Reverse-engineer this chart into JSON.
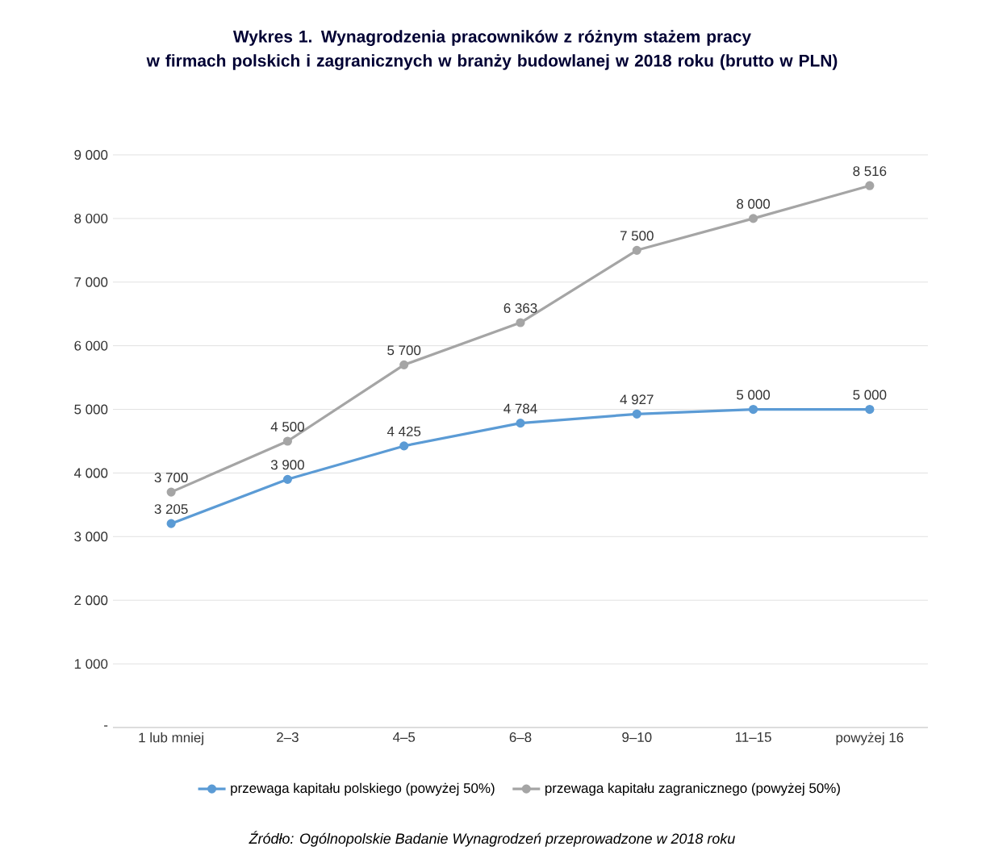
{
  "chart_data": {
    "type": "line",
    "title": "Wykres 1. Wynagrodzenia pracowników z różnym stażem pracy\nw firmach polskich i zagranicznych w branży budowlanej w 2018 roku (brutto w PLN)",
    "categories": [
      "1 lub mniej",
      "2–3",
      "4–5",
      "6–8",
      "9–10",
      "11–15",
      "powyżej 16"
    ],
    "series": [
      {
        "name": "przewaga kapitału polskiego (powyżej 50%)",
        "color": "#5b9bd5",
        "values": [
          3205,
          3900,
          4425,
          4784,
          4927,
          5000,
          5000
        ],
        "value_labels": [
          "3 205",
          "3 900",
          "4 425",
          "4 784",
          "4 927",
          "5 000",
          "5 000"
        ]
      },
      {
        "name": "przewaga kapitału zagranicznego (powyżej 50%)",
        "color": "#a5a5a5",
        "values": [
          3700,
          4500,
          5700,
          6363,
          7500,
          8000,
          8516
        ],
        "value_labels": [
          "3 700",
          "4 500",
          "5 700",
          "6 363",
          "7 500",
          "8 000",
          "8 516"
        ]
      }
    ],
    "ylim": [
      0,
      9000
    ],
    "yticks": [
      {
        "value": 0,
        "label": "-"
      },
      {
        "value": 1000,
        "label": "1 000"
      },
      {
        "value": 2000,
        "label": "2 000"
      },
      {
        "value": 3000,
        "label": "3 000"
      },
      {
        "value": 4000,
        "label": "4 000"
      },
      {
        "value": 5000,
        "label": "5 000"
      },
      {
        "value": 6000,
        "label": "6 000"
      },
      {
        "value": 7000,
        "label": "7 000"
      },
      {
        "value": 8000,
        "label": "8 000"
      },
      {
        "value": 9000,
        "label": "9 000"
      }
    ],
    "grid": "y",
    "legend": "bottom",
    "marker": "circle",
    "line_style": "solid",
    "annotations": [
      "Źródło: Ogólnopolskie Badanie Wynagrodzeń przeprowadzone w 2018 roku"
    ]
  }
}
